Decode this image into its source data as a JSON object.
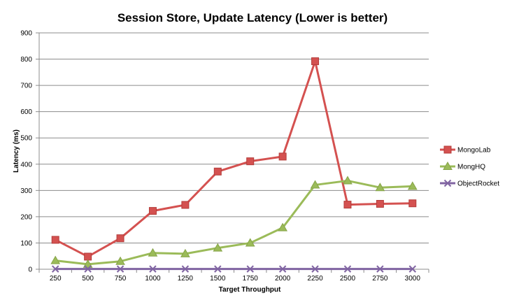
{
  "chart_data": {
    "type": "line",
    "title": "Session Store, Update Latency (Lower is better)",
    "xlabel": "Target Throughput",
    "ylabel": "Latency (ms)",
    "categories": [
      "250",
      "500",
      "750",
      "1000",
      "1250",
      "1500",
      "1750",
      "2000",
      "2250",
      "2500",
      "2750",
      "3000"
    ],
    "ylim": [
      0,
      900
    ],
    "yticks": [
      "0",
      "100",
      "200",
      "300",
      "400",
      "500",
      "600",
      "700",
      "800",
      "900"
    ],
    "grid": true,
    "legend_position": "right",
    "series": [
      {
        "name": "MongoLab",
        "color": "#d45150",
        "marker": "square",
        "values": [
          112,
          48,
          118,
          222,
          245,
          372,
          411,
          429,
          792,
          246,
          249,
          251
        ]
      },
      {
        "name": "MongHQ",
        "color": "#9bbb59",
        "marker": "triangle",
        "values": [
          33,
          19,
          30,
          62,
          59,
          81,
          100,
          158,
          321,
          337,
          311,
          316
        ]
      },
      {
        "name": "ObjectRocket",
        "color": "#8064a2",
        "marker": "x",
        "values": [
          1,
          1,
          1,
          1,
          1,
          1,
          1,
          1,
          1,
          1,
          1,
          1
        ]
      }
    ]
  }
}
